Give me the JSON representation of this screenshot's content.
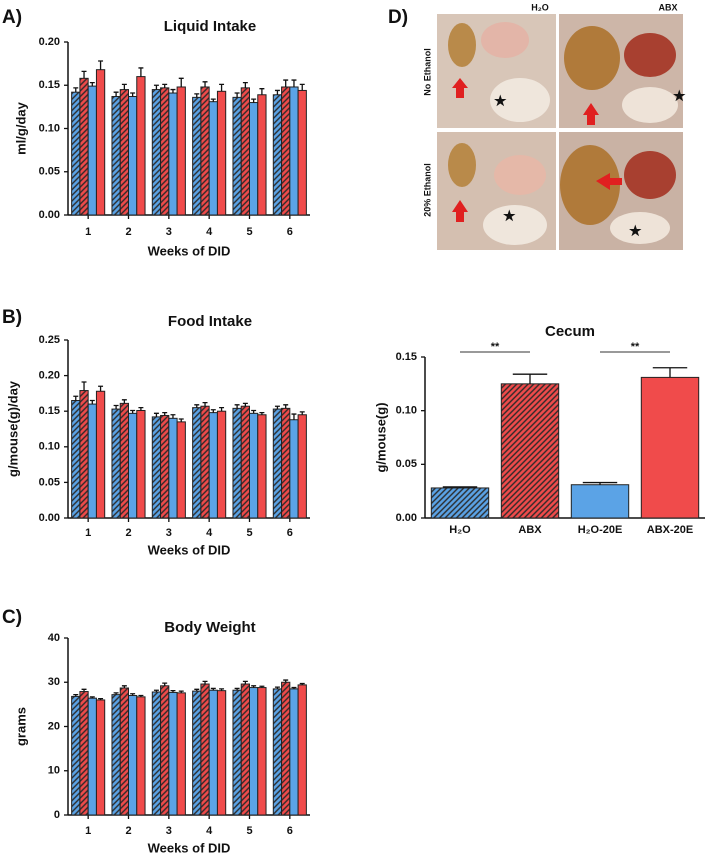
{
  "chart_data": [
    {
      "type": "bar",
      "panel_label": "A)",
      "title": "Liquid Intake",
      "y_label": "ml/g/day",
      "x_label": "Weeks of DID",
      "categories": [
        "1",
        "2",
        "3",
        "4",
        "5",
        "6"
      ],
      "series": [
        {
          "color": "#5ba3e6",
          "hatch": true,
          "values": [
            0.142,
            0.137,
            0.145,
            0.136,
            0.136,
            0.139
          ],
          "errors": [
            0.005,
            0.005,
            0.005,
            0.004,
            0.005,
            0.005
          ]
        },
        {
          "color": "#f04b4b",
          "hatch": true,
          "values": [
            0.158,
            0.145,
            0.147,
            0.148,
            0.147,
            0.148
          ],
          "errors": [
            0.008,
            0.006,
            0.004,
            0.006,
            0.006,
            0.008
          ]
        },
        {
          "color": "#5ba3e6",
          "hatch": false,
          "values": [
            0.149,
            0.137,
            0.141,
            0.131,
            0.13,
            0.148
          ],
          "errors": [
            0.004,
            0.004,
            0.004,
            0.003,
            0.004,
            0.008
          ]
        },
        {
          "color": "#f04b4b",
          "hatch": false,
          "values": [
            0.168,
            0.16,
            0.148,
            0.143,
            0.139,
            0.144
          ],
          "errors": [
            0.01,
            0.01,
            0.01,
            0.008,
            0.007,
            0.007
          ]
        }
      ],
      "ylim": [
        0,
        0.2
      ],
      "yticks": [
        {
          "value": 0,
          "label": "0.00"
        },
        {
          "value": 0.05,
          "label": "0.05"
        },
        {
          "value": 0.1,
          "label": "0.10"
        },
        {
          "value": 0.15,
          "label": "0.15"
        },
        {
          "value": 0.2,
          "label": "0.20"
        }
      ]
    },
    {
      "type": "bar",
      "panel_label": "B)",
      "title": "Food Intake",
      "y_label": "g/mouse(g)/day",
      "x_label": "Weeks of DID",
      "categories": [
        "1",
        "2",
        "3",
        "4",
        "5",
        "6"
      ],
      "series": [
        {
          "color": "#5ba3e6",
          "hatch": true,
          "values": [
            0.165,
            0.153,
            0.142,
            0.155,
            0.154,
            0.153
          ],
          "errors": [
            0.006,
            0.005,
            0.005,
            0.004,
            0.005,
            0.004
          ]
        },
        {
          "color": "#f04b4b",
          "hatch": true,
          "values": [
            0.179,
            0.161,
            0.144,
            0.157,
            0.157,
            0.154
          ],
          "errors": [
            0.012,
            0.005,
            0.004,
            0.005,
            0.004,
            0.005
          ]
        },
        {
          "color": "#5ba3e6",
          "hatch": false,
          "values": [
            0.16,
            0.147,
            0.14,
            0.148,
            0.147,
            0.138
          ],
          "errors": [
            0.005,
            0.004,
            0.005,
            0.004,
            0.004,
            0.008
          ]
        },
        {
          "color": "#f04b4b",
          "hatch": false,
          "values": [
            0.178,
            0.151,
            0.135,
            0.15,
            0.145,
            0.145
          ],
          "errors": [
            0.007,
            0.004,
            0.004,
            0.005,
            0.003,
            0.004
          ]
        }
      ],
      "ylim": [
        0,
        0.25
      ],
      "yticks": [
        {
          "value": 0,
          "label": "0.00"
        },
        {
          "value": 0.05,
          "label": "0.05"
        },
        {
          "value": 0.1,
          "label": "0.10"
        },
        {
          "value": 0.15,
          "label": "0.15"
        },
        {
          "value": 0.2,
          "label": "0.20"
        },
        {
          "value": 0.25,
          "label": "0.25"
        }
      ]
    },
    {
      "type": "bar",
      "panel_label": "C)",
      "title": "Body Weight",
      "y_label": "grams",
      "x_label": "Weeks of DID",
      "categories": [
        "1",
        "2",
        "3",
        "4",
        "5",
        "6"
      ],
      "series": [
        {
          "color": "#5ba3e6",
          "hatch": true,
          "values": [
            26.8,
            27.2,
            27.8,
            28.0,
            28.2,
            28.5
          ],
          "errors": [
            0.4,
            0.4,
            0.4,
            0.4,
            0.4,
            0.4
          ]
        },
        {
          "color": "#f04b4b",
          "hatch": true,
          "values": [
            27.9,
            28.7,
            29.2,
            29.6,
            29.6,
            30.0
          ],
          "errors": [
            0.5,
            0.5,
            0.6,
            0.6,
            0.6,
            0.5
          ]
        },
        {
          "color": "#5ba3e6",
          "hatch": false,
          "values": [
            26.4,
            27.0,
            27.7,
            28.2,
            28.8,
            28.5
          ],
          "errors": [
            0.3,
            0.4,
            0.4,
            0.4,
            0.4,
            0.3
          ]
        },
        {
          "color": "#f04b4b",
          "hatch": false,
          "values": [
            26.0,
            26.7,
            27.6,
            28.1,
            28.8,
            29.4
          ],
          "errors": [
            0.3,
            0.3,
            0.4,
            0.4,
            0.3,
            0.3
          ]
        }
      ],
      "ylim": [
        0,
        40
      ],
      "yticks": [
        0,
        10,
        20,
        30,
        40
      ]
    },
    {
      "type": "single-bar",
      "title": "Cecum",
      "y_label": "g/mouse(g)",
      "categories": [
        "H₂O",
        "ABX",
        "H₂O-20E",
        "ABX-20E"
      ],
      "values": [
        0.028,
        0.125,
        0.031,
        0.131
      ],
      "errors": [
        0.001,
        0.009,
        0.002,
        0.009
      ],
      "colors": [
        "#5ba3e6",
        "#f04b4b",
        "#5ba3e6",
        "#f04b4b"
      ],
      "hatch": [
        true,
        true,
        false,
        false
      ],
      "annotations": [
        "**",
        "**"
      ],
      "ylim": [
        0,
        0.15
      ],
      "yticks": [
        {
          "value": 0,
          "label": "0.00"
        },
        {
          "value": 0.05,
          "label": "0.05"
        },
        {
          "value": 0.1,
          "label": "0.10"
        },
        {
          "value": 0.15,
          "label": "0.15"
        }
      ]
    }
  ],
  "photo": {
    "panel_label": "D)",
    "columns": [
      "H₂O",
      "ABX"
    ],
    "rows": [
      "No Ethanol",
      "20% Ethanol"
    ]
  }
}
